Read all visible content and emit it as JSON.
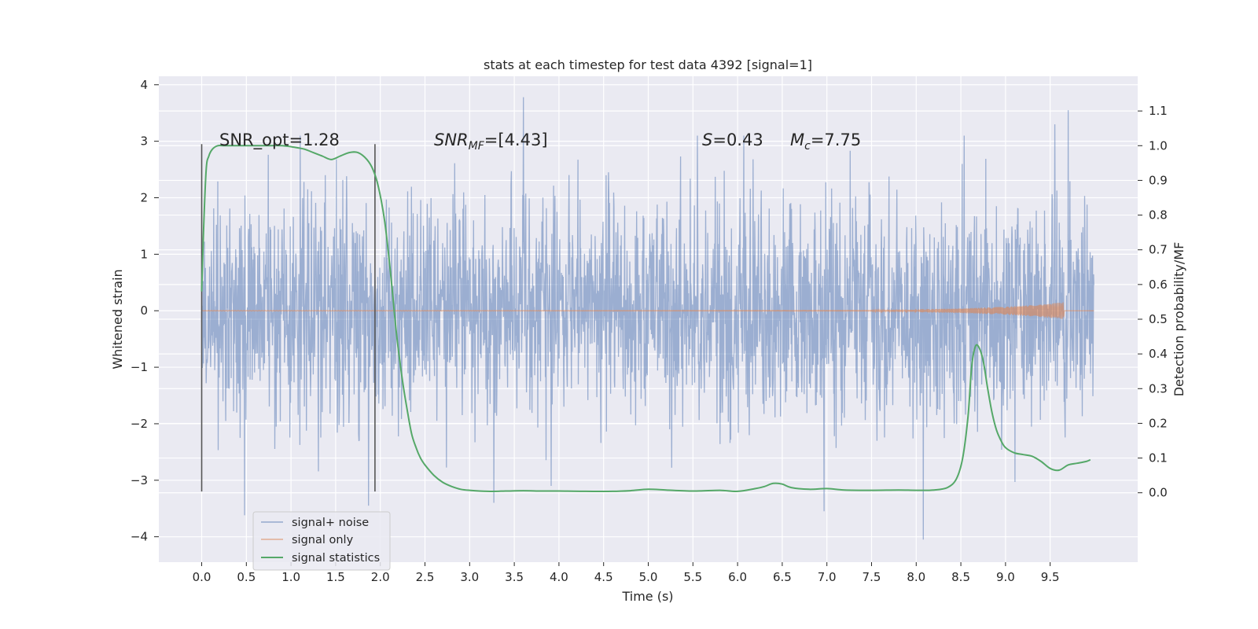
{
  "chart_data": {
    "type": "line",
    "title": "stats at each timestep for test data 4392 [signal=1]",
    "xlabel": "Time (s)",
    "ylabel": "Whitened strain",
    "ylabel_right": "Detection probability/MF",
    "xlim": [
      -0.48,
      10.48
    ],
    "ylim": [
      -4.45,
      4.15
    ],
    "ylim_right": [
      -0.2,
      1.2
    ],
    "x_ticks": [
      0.0,
      0.5,
      1.0,
      1.5,
      2.0,
      2.5,
      3.0,
      3.5,
      4.0,
      4.5,
      5.0,
      5.5,
      6.0,
      6.5,
      7.0,
      7.5,
      8.0,
      8.5,
      9.0,
      9.5
    ],
    "x_tick_labels": [
      "0.0",
      "0.5",
      "1.0",
      "1.5",
      "2.0",
      "2.5",
      "3.0",
      "3.5",
      "4.0",
      "4.5",
      "5.0",
      "5.5",
      "6.0",
      "6.5",
      "7.0",
      "7.5",
      "8.0",
      "8.5",
      "9.0",
      "9.5"
    ],
    "y_ticks": [
      -4,
      -3,
      -2,
      -1,
      0,
      1,
      2,
      3,
      4
    ],
    "y_tick_labels": [
      "−4",
      "−3",
      "−2",
      "−1",
      "0",
      "1",
      "2",
      "3",
      "4"
    ],
    "y_ticks_right": [
      0.0,
      0.1,
      0.2,
      0.3,
      0.4,
      0.5,
      0.6,
      0.7,
      0.8,
      0.9,
      1.0,
      1.1
    ],
    "y_tick_labels_right": [
      "0.0",
      "0.1",
      "0.2",
      "0.3",
      "0.4",
      "0.5",
      "0.6",
      "0.7",
      "0.8",
      "0.9",
      "1.0",
      "1.1"
    ],
    "grid": true,
    "background": "#eaeaf2",
    "legend_position": "lower-left",
    "series": [
      {
        "name": "signal+ noise",
        "axis": "left",
        "color": "#4c72b0",
        "x_range": [
          0.0,
          9.99
        ],
        "typical_band": [
          -1.8,
          1.8
        ],
        "approximate": "dense noise trace; notable extremes listed",
        "extremes": [
          {
            "x": 0.48,
            "y": -3.62
          },
          {
            "x": 1.87,
            "y": -3.45
          },
          {
            "x": 3.6,
            "y": 3.78
          },
          {
            "x": 3.27,
            "y": -3.4
          },
          {
            "x": 8.08,
            "y": -4.05
          },
          {
            "x": 9.7,
            "y": 3.55
          },
          {
            "x": 9.55,
            "y": 3.3
          },
          {
            "x": 6.97,
            "y": -3.55
          }
        ]
      },
      {
        "name": "signal only",
        "axis": "left",
        "color": "#dd8452",
        "x_range": [
          0.0,
          9.99
        ],
        "values_note": "≈0 everywhere; chirp amplitude grows to ≈0.15 near t≈9.65 then stops",
        "envelope": [
          [
            7.5,
            0.01
          ],
          [
            8.5,
            0.04
          ],
          [
            9.0,
            0.07
          ],
          [
            9.4,
            0.11
          ],
          [
            9.65,
            0.15
          ],
          [
            9.66,
            0.0
          ]
        ]
      },
      {
        "name": "signal statistics",
        "axis": "right",
        "color": "#55a868",
        "x": [
          0.0,
          0.02,
          0.05,
          0.08,
          0.12,
          0.18,
          0.25,
          0.35,
          0.5,
          0.7,
          0.9,
          1.05,
          1.15,
          1.25,
          1.35,
          1.45,
          1.55,
          1.65,
          1.75,
          1.85,
          1.92,
          1.98,
          2.05,
          2.12,
          2.18,
          2.25,
          2.3,
          2.35,
          2.4,
          2.45,
          2.5,
          2.6,
          2.7,
          2.8,
          2.9,
          3.0,
          3.2,
          3.4,
          3.6,
          3.8,
          4.0,
          4.3,
          4.6,
          4.8,
          5.0,
          5.2,
          5.5,
          5.8,
          6.0,
          6.2,
          6.3,
          6.4,
          6.5,
          6.6,
          6.8,
          7.0,
          7.2,
          7.5,
          7.8,
          8.0,
          8.2,
          8.35,
          8.45,
          8.52,
          8.58,
          8.62,
          8.66,
          8.7,
          8.75,
          8.8,
          8.85,
          8.9,
          8.95,
          9.0,
          9.1,
          9.2,
          9.3,
          9.4,
          9.5,
          9.6,
          9.7,
          9.8,
          9.9,
          9.95
        ],
        "y": [
          0.58,
          0.75,
          0.93,
          0.97,
          0.99,
          1.0,
          1.0,
          1.0,
          1.0,
          1.0,
          1.0,
          0.995,
          0.99,
          0.98,
          0.97,
          0.96,
          0.97,
          0.98,
          0.98,
          0.96,
          0.93,
          0.88,
          0.78,
          0.62,
          0.46,
          0.32,
          0.24,
          0.17,
          0.13,
          0.1,
          0.08,
          0.05,
          0.03,
          0.018,
          0.01,
          0.007,
          0.004,
          0.005,
          0.006,
          0.005,
          0.005,
          0.004,
          0.004,
          0.006,
          0.01,
          0.008,
          0.005,
          0.007,
          0.004,
          0.012,
          0.018,
          0.027,
          0.025,
          0.015,
          0.01,
          0.012,
          0.008,
          0.007,
          0.008,
          0.007,
          0.008,
          0.015,
          0.04,
          0.1,
          0.22,
          0.36,
          0.42,
          0.42,
          0.38,
          0.3,
          0.23,
          0.18,
          0.15,
          0.13,
          0.115,
          0.11,
          0.105,
          0.09,
          0.07,
          0.065,
          0.08,
          0.085,
          0.09,
          0.095
        ]
      }
    ],
    "vlines": [
      {
        "x": 0.0,
        "y_range": [
          -3.2,
          2.95
        ],
        "color": "#555555"
      },
      {
        "x": 1.94,
        "y_range": [
          -3.2,
          2.95
        ],
        "color": "#555555"
      }
    ],
    "annotations": [
      {
        "text": "SNR_opt=1.28",
        "x": 0.2,
        "y": 2.9
      },
      {
        "text": "=[4.43]",
        "math_prefix": "SNR_MF",
        "x": 2.6,
        "y": 2.9
      },
      {
        "text": "=0.43",
        "math_prefix": "S",
        "x": 5.6,
        "y": 2.9
      },
      {
        "text": "=7.75",
        "math_prefix": "M_c",
        "x": 6.6,
        "y": 2.9
      }
    ],
    "legend": [
      {
        "label": "signal+ noise",
        "color": "#4c72b0"
      },
      {
        "label": "signal only",
        "color": "#dd8452"
      },
      {
        "label": "signal statistics",
        "color": "#55a868"
      }
    ]
  }
}
